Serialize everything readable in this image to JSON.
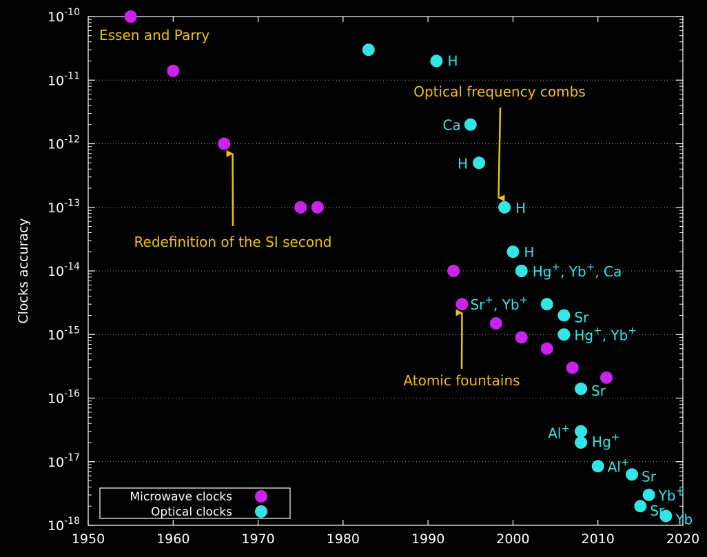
{
  "chart_data": {
    "type": "scatter",
    "title": "",
    "xlabel": "",
    "ylabel": "Clocks accuracy",
    "xlim": [
      1950,
      2020
    ],
    "ylim_log10": [
      -18,
      -10
    ],
    "yscale": "log",
    "x_ticks": [
      1950,
      1960,
      1970,
      1980,
      1990,
      2000,
      2010,
      2020
    ],
    "y_tick_exponents": [
      -10,
      -11,
      -12,
      -13,
      -14,
      -15,
      -16,
      -17,
      -18
    ],
    "y_tick_base": "10",
    "grid": "horizontal dotted",
    "legend_position": "bottom-left",
    "series": [
      {
        "name": "Microwave clocks",
        "color": "#cc22ee",
        "points": [
          {
            "x": 1955,
            "y": 1e-10
          },
          {
            "x": 1960,
            "y": 1.4e-11
          },
          {
            "x": 1966,
            "y": 1e-12
          },
          {
            "x": 1975,
            "y": 1e-13
          },
          {
            "x": 1977,
            "y": 1e-13
          },
          {
            "x": 1993,
            "y": 1e-14
          },
          {
            "x": 1994,
            "y": 3e-15,
            "label": "Sr⁺, Yb⁺"
          },
          {
            "x": 1998,
            "y": 1.5e-15
          },
          {
            "x": 2001,
            "y": 9e-16
          },
          {
            "x": 2004,
            "y": 6e-16
          },
          {
            "x": 2007,
            "y": 3e-16
          },
          {
            "x": 2011,
            "y": 2.1e-16
          }
        ]
      },
      {
        "name": "Optical clocks",
        "color": "#33e6e6",
        "points": [
          {
            "x": 1983,
            "y": 3e-11
          },
          {
            "x": 1991,
            "y": 2e-11,
            "label": "H"
          },
          {
            "x": 1995,
            "y": 2e-12,
            "label": "Ca"
          },
          {
            "x": 1996,
            "y": 5e-13,
            "label": "H"
          },
          {
            "x": 1999,
            "y": 1e-13,
            "label": "H"
          },
          {
            "x": 2000,
            "y": 2e-14,
            "label": "H"
          },
          {
            "x": 2001,
            "y": 1e-14,
            "label": "Hg⁺, Yb⁺, Ca"
          },
          {
            "x": 2004,
            "y": 3e-15
          },
          {
            "x": 2006,
            "y": 2e-15,
            "label": "Sr"
          },
          {
            "x": 2006,
            "y": 1e-15,
            "label": "Hg⁺, Yb⁺"
          },
          {
            "x": 2008,
            "y": 1.4e-16,
            "label": "Sr"
          },
          {
            "x": 2008,
            "y": 3e-17,
            "label": "Al⁺"
          },
          {
            "x": 2008,
            "y": 2e-17,
            "label": "Hg⁺"
          },
          {
            "x": 2010,
            "y": 8.5e-18,
            "label": "Al⁺"
          },
          {
            "x": 2014,
            "y": 6.3e-18,
            "label": "Sr"
          },
          {
            "x": 2016,
            "y": 3e-18,
            "label": "Yb⁺"
          },
          {
            "x": 2015,
            "y": 2e-18,
            "label": "Sr"
          },
          {
            "x": 2018,
            "y": 1.4e-18,
            "label": "Yb"
          }
        ]
      }
    ],
    "annotations": [
      {
        "text": "Essen and Parry"
      },
      {
        "text": "Optical frequency combs",
        "arrow_to": {
          "x": 1998.3,
          "y": 1.4e-13
        }
      },
      {
        "text": "Redefinition of the SI second",
        "arrow_to": {
          "x": 1967,
          "y": 7e-13
        }
      },
      {
        "text": "Atomic fountains",
        "arrow_to": {
          "x": 1994,
          "y": 2.2e-15
        }
      }
    ],
    "annotation_color": "#f0c20a"
  }
}
